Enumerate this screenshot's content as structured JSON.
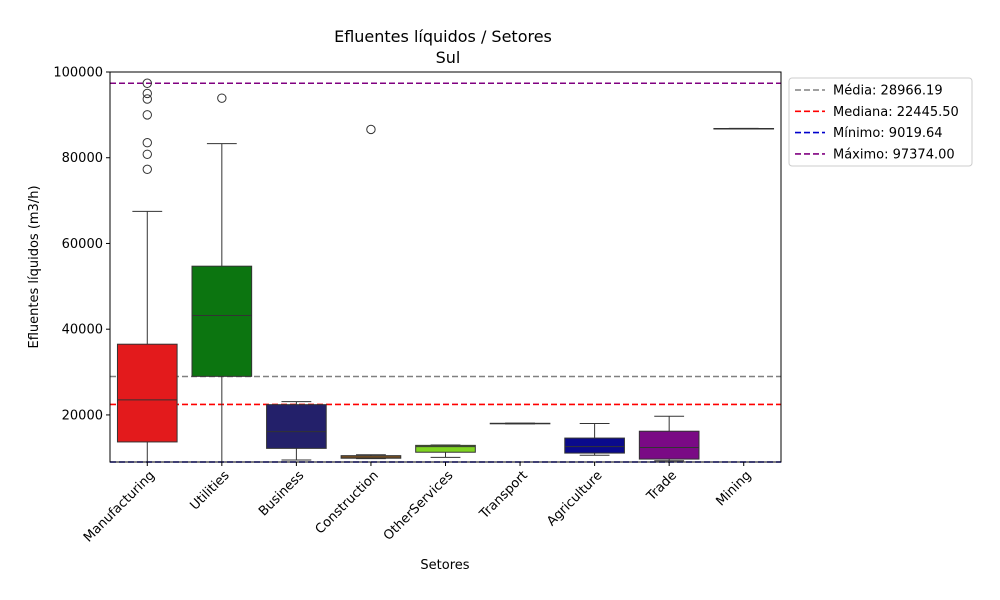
{
  "chart_data": {
    "type": "box",
    "title": "Efluentes líquidos / Setores",
    "subtitle": "Sul",
    "xlabel": "Setores",
    "ylabel": "Efluentes líquidos (m3/h)",
    "ylim": [
      9019.64,
      100000
    ],
    "yticks": [
      20000,
      40000,
      60000,
      80000,
      100000
    ],
    "ytick_labels": [
      "20000",
      "40000",
      "60000",
      "80000",
      "100000"
    ],
    "categories": [
      "Manufacturing",
      "Utilities",
      "Business",
      "Construction",
      "OtherServices",
      "Transport",
      "Agriculture",
      "Trade",
      "Mining"
    ],
    "boxes": [
      {
        "category": "Manufacturing",
        "color": "#e31a1c",
        "whisker_low": 9019.64,
        "q1": 13700,
        "median": 23500,
        "q3": 36500,
        "whisker_high": 67500,
        "outliers": [
          77300,
          80800,
          83500,
          90000,
          93700,
          95000,
          97374
        ]
      },
      {
        "category": "Utilities",
        "color": "#0c7510",
        "whisker_low": 9019.64,
        "q1": 29000,
        "median": 43200,
        "q3": 54700,
        "whisker_high": 83300,
        "outliers": [
          93900
        ]
      },
      {
        "category": "Business",
        "color": "#23206a",
        "whisker_low": 9500,
        "q1": 12200,
        "median": 16100,
        "q3": 22400,
        "whisker_high": 23100,
        "outliers": []
      },
      {
        "category": "Construction",
        "color": "#d97706",
        "whisker_low": 9800,
        "q1": 9900,
        "median": 10200,
        "q3": 10500,
        "whisker_high": 10700,
        "outliers": [
          86600
        ]
      },
      {
        "category": "OtherServices",
        "color": "#7ed321",
        "whisker_low": 10100,
        "q1": 11300,
        "median": 12600,
        "q3": 12900,
        "whisker_high": 13000,
        "outliers": []
      },
      {
        "category": "Transport",
        "color": "#222222",
        "whisker_low": 17900,
        "q1": 17950,
        "median": 18000,
        "q3": 18050,
        "whisker_high": 18100,
        "outliers": []
      },
      {
        "category": "Agriculture",
        "color": "#0a0a8c",
        "whisker_low": 10600,
        "q1": 11100,
        "median": 12600,
        "q3": 14600,
        "whisker_high": 18000,
        "outliers": []
      },
      {
        "category": "Trade",
        "color": "#7a0a85",
        "whisker_low": 9300,
        "q1": 9700,
        "median": 12400,
        "q3": 16200,
        "whisker_high": 19700,
        "outliers": []
      },
      {
        "category": "Mining",
        "color": "#222222",
        "whisker_low": 86750,
        "q1": 86780,
        "median": 86800,
        "q3": 86820,
        "whisker_high": 86850,
        "outliers": []
      }
    ],
    "reference_lines": [
      {
        "label": "Média: 28966.19",
        "value": 28966.19,
        "color": "#808080"
      },
      {
        "label": "Mediana: 22445.50",
        "value": 22445.5,
        "color": "#ff0000"
      },
      {
        "label": "Mínimo: 9019.64",
        "value": 9019.64,
        "color": "#0000cc"
      },
      {
        "label": "Máximo: 97374.00",
        "value": 97374.0,
        "color": "#800080"
      }
    ],
    "legend_position": "outside-top-right",
    "grid": false
  }
}
